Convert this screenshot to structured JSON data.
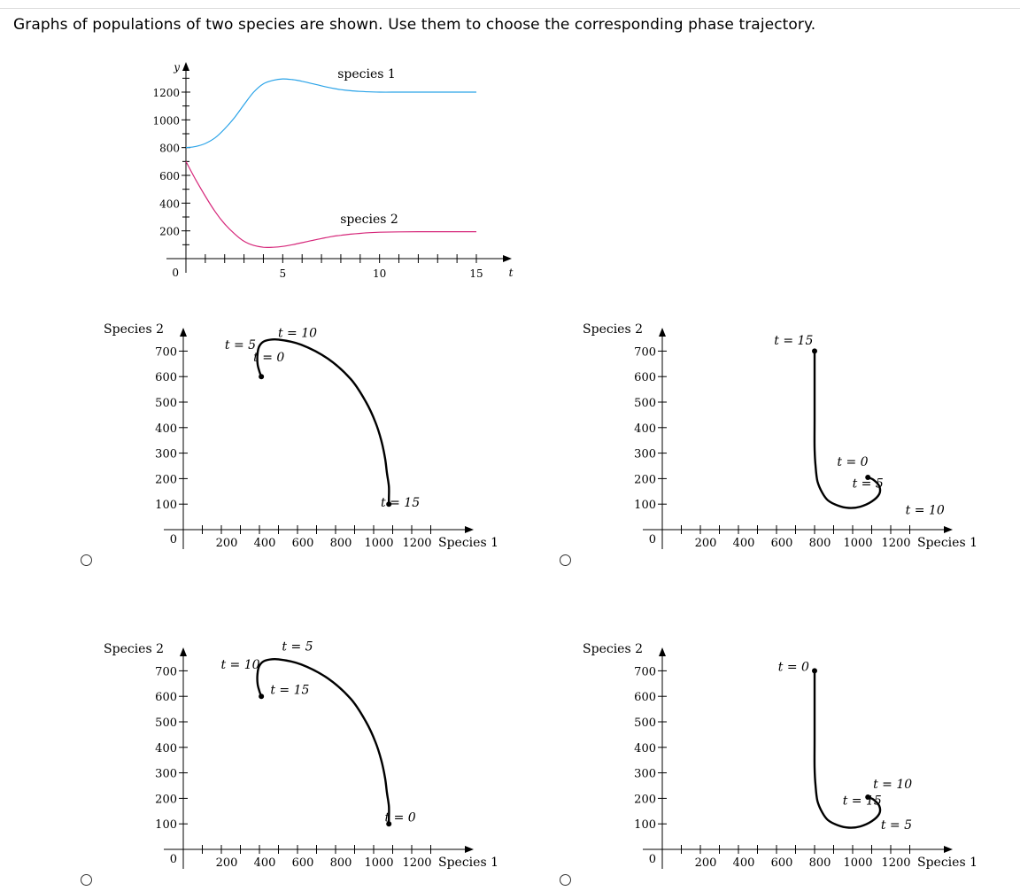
{
  "question": "Graphs of populations of two species are shown. Use them to choose the corresponding phase trajectory.",
  "chart_data": [
    {
      "id": "population-graph",
      "type": "line",
      "xlabel": "t",
      "ylabel": "y",
      "xticks": [
        5,
        10,
        15
      ],
      "yticks": [
        1200,
        1000,
        800,
        600,
        400,
        200
      ],
      "zero_label": "0",
      "xlim": [
        0,
        16.5
      ],
      "ylim": [
        0,
        1350
      ],
      "series": [
        {
          "name": "species 1",
          "color": "#2aa3e8",
          "t": [
            0,
            0.5,
            1,
            1.5,
            2,
            2.5,
            3,
            3.5,
            4,
            4.5,
            5,
            5.5,
            6,
            6.5,
            7,
            7.5,
            8,
            8.5,
            9,
            9.5,
            10,
            11,
            12,
            13,
            14,
            15
          ],
          "values": [
            800,
            808,
            830,
            870,
            935,
            1015,
            1110,
            1200,
            1260,
            1285,
            1295,
            1290,
            1278,
            1262,
            1245,
            1230,
            1218,
            1210,
            1205,
            1202,
            1200,
            1200,
            1200,
            1200,
            1200,
            1200
          ]
        },
        {
          "name": "species 2",
          "color": "#d6277a",
          "t": [
            0,
            0.5,
            1,
            1.5,
            2,
            2.5,
            3,
            3.5,
            4,
            4.5,
            5,
            5.5,
            6,
            6.5,
            7,
            7.5,
            8,
            8.5,
            9,
            9.5,
            10,
            11,
            12,
            13,
            14,
            15
          ],
          "values": [
            700,
            570,
            450,
            340,
            250,
            180,
            125,
            95,
            82,
            82,
            88,
            100,
            115,
            130,
            145,
            158,
            168,
            176,
            182,
            187,
            190,
            193,
            194,
            194,
            194,
            194
          ]
        }
      ]
    },
    {
      "id": "phase-option-a",
      "type": "line",
      "ylabel": "Species 2",
      "xlabel": "Species 1",
      "xticks": [
        200,
        400,
        600,
        800,
        1000,
        1200
      ],
      "yticks": [
        700,
        600,
        500,
        400,
        300,
        200,
        100
      ],
      "zero_label": "0",
      "xlim": [
        0,
        1550
      ],
      "ylim": [
        0,
        780
      ],
      "points": {
        "x": [
          410,
          400,
          390,
          390,
          400,
          430,
          500,
          620,
          760,
          880,
          960,
          1010,
          1040,
          1060,
          1070,
          1080,
          1080,
          1080
        ],
        "y": [
          600,
          620,
          650,
          690,
          720,
          740,
          745,
          725,
          670,
          590,
          500,
          420,
          350,
          280,
          220,
          170,
          120,
          100
        ]
      },
      "annotations": [
        {
          "text": "t = 5",
          "x": 300,
          "y": 708
        },
        {
          "text": "t = 10",
          "x": 600,
          "y": 755
        },
        {
          "text": "t = 0",
          "x": 450,
          "y": 660
        },
        {
          "text": "t = 15",
          "x": 1140,
          "y": 90
        }
      ]
    },
    {
      "id": "phase-option-b",
      "type": "line",
      "ylabel": "Species 2",
      "xlabel": "Species 1",
      "xticks": [
        200,
        400,
        600,
        800,
        1000,
        1200
      ],
      "yticks": [
        700,
        600,
        500,
        400,
        300,
        200,
        100
      ],
      "zero_label": "0",
      "xlim": [
        0,
        1550
      ],
      "ylim": [
        0,
        780
      ],
      "points": {
        "x": [
          800,
          800,
          800,
          800,
          805,
          815,
          840,
          870,
          920,
          980,
          1040,
          1100,
          1140,
          1140,
          1110,
          1080
        ],
        "y": [
          700,
          560,
          430,
          320,
          250,
          190,
          145,
          115,
          95,
          85,
          90,
          110,
          140,
          170,
          195,
          205
        ]
      },
      "annotations": [
        {
          "text": "t = 15",
          "x": 690,
          "y": 725
        },
        {
          "text": "t = 0",
          "x": 1000,
          "y": 250
        },
        {
          "text": "t = 5",
          "x": 1080,
          "y": 165
        },
        {
          "text": "t = 10",
          "x": 1380,
          "y": 60
        }
      ]
    },
    {
      "id": "phase-option-c",
      "type": "line",
      "ylabel": "Species 2",
      "xlabel": "Species 1",
      "xticks": [
        200,
        400,
        600,
        800,
        1000,
        1200
      ],
      "yticks": [
        700,
        600,
        500,
        400,
        300,
        200,
        100
      ],
      "zero_label": "0",
      "xlim": [
        0,
        1550
      ],
      "ylim": [
        0,
        780
      ],
      "points": {
        "x": [
          410,
          400,
          390,
          390,
          400,
          430,
          500,
          620,
          760,
          880,
          960,
          1010,
          1040,
          1060,
          1070,
          1080,
          1080,
          1080
        ],
        "y": [
          600,
          620,
          650,
          690,
          720,
          740,
          745,
          725,
          670,
          590,
          500,
          420,
          350,
          280,
          220,
          170,
          120,
          100
        ]
      },
      "annotations": [
        {
          "text": "t = 10",
          "x": 300,
          "y": 708
        },
        {
          "text": "t = 5",
          "x": 600,
          "y": 780
        },
        {
          "text": "t = 15",
          "x": 560,
          "y": 610
        },
        {
          "text": "t = 0",
          "x": 1140,
          "y": 110
        }
      ]
    },
    {
      "id": "phase-option-d",
      "type": "line",
      "ylabel": "Species 2",
      "xlabel": "Species 1",
      "xticks": [
        200,
        400,
        600,
        800,
        1000,
        1200
      ],
      "yticks": [
        700,
        600,
        500,
        400,
        300,
        200,
        100
      ],
      "zero_label": "0",
      "xlim": [
        0,
        1550
      ],
      "ylim": [
        0,
        780
      ],
      "points": {
        "x": [
          800,
          800,
          800,
          800,
          805,
          815,
          840,
          870,
          920,
          980,
          1040,
          1100,
          1140,
          1140,
          1110,
          1080
        ],
        "y": [
          700,
          560,
          430,
          320,
          250,
          190,
          145,
          115,
          95,
          85,
          90,
          110,
          140,
          170,
          195,
          205
        ]
      },
      "annotations": [
        {
          "text": "t = 0",
          "x": 690,
          "y": 700
        },
        {
          "text": "t = 10",
          "x": 1210,
          "y": 240
        },
        {
          "text": "t = 15",
          "x": 1050,
          "y": 175
        },
        {
          "text": "t = 5",
          "x": 1230,
          "y": 80
        }
      ]
    }
  ]
}
